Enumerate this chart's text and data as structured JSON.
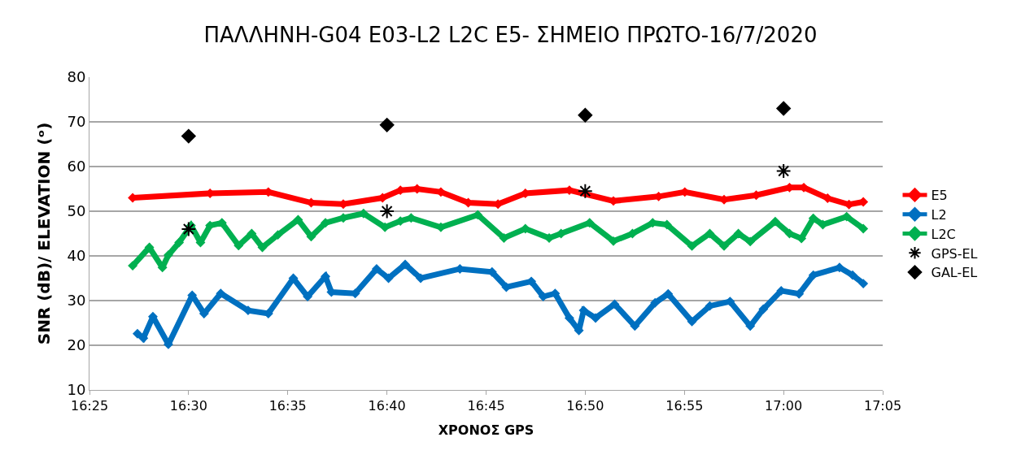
{
  "chart_data": {
    "type": "line",
    "title": "ΠΑΛΛΗΝΗ-G04 E03-L2 L2C E5- ΣΗΜΕΙΟ ΠΡΩΤΟ-16/7/2020",
    "xlabel": "ΧΡΟΝΟΣ GPS",
    "ylabel": "SNR (dB)/ ELEVATION (ᵒ)",
    "xlim": [
      16.4167,
      17.0833
    ],
    "xticks": [
      {
        "value": 16.4167,
        "label": "16:25"
      },
      {
        "value": 16.5,
        "label": "16:30"
      },
      {
        "value": 16.5833,
        "label": "16:35"
      },
      {
        "value": 16.6667,
        "label": "16:40"
      },
      {
        "value": 16.75,
        "label": "16:45"
      },
      {
        "value": 16.8333,
        "label": "16:50"
      },
      {
        "value": 16.9167,
        "label": "16:55"
      },
      {
        "value": 17.0,
        "label": "17:00"
      },
      {
        "value": 17.0833,
        "label": "17:05"
      }
    ],
    "ylim": [
      10,
      80
    ],
    "yticks": [
      10,
      20,
      30,
      40,
      50,
      60,
      70,
      80
    ],
    "grid": "y",
    "legend": "right",
    "series": [
      {
        "name": "E5",
        "color": "#ff0000",
        "marker": "diamond",
        "x": [
          16.453,
          16.518,
          16.567,
          16.603,
          16.63,
          16.663,
          16.678,
          16.692,
          16.712,
          16.735,
          16.76,
          16.783,
          16.82,
          16.857,
          16.895,
          16.917,
          16.95,
          16.977,
          17.005,
          17.017,
          17.037,
          17.055,
          17.067
        ],
        "values": [
          53,
          54,
          54.3,
          51.9,
          51.6,
          53,
          54.7,
          55,
          54.3,
          51.9,
          51.6,
          54,
          54.7,
          52.3,
          53.3,
          54.3,
          52.6,
          53.6,
          55.3,
          55.3,
          52.9,
          51.5,
          52.1
        ]
      },
      {
        "name": "L2",
        "color": "#0070c0",
        "marker": "diamond",
        "x": [
          16.457,
          16.462,
          16.47,
          16.483,
          16.503,
          16.513,
          16.527,
          16.55,
          16.567,
          16.588,
          16.6,
          16.615,
          16.62,
          16.64,
          16.658,
          16.668,
          16.682,
          16.695,
          16.728,
          16.755,
          16.767,
          16.788,
          16.798,
          16.808,
          16.82,
          16.828,
          16.832,
          16.842,
          16.858,
          16.875,
          16.892,
          16.903,
          16.923,
          16.938,
          16.955,
          16.972,
          16.983,
          16.998,
          17.013,
          17.025,
          17.047,
          17.058,
          17.067
        ],
        "values": [
          22.6,
          21.6,
          26.4,
          20.2,
          31.2,
          27.1,
          31.6,
          27.8,
          27.1,
          35,
          30.9,
          35.4,
          31.9,
          31.6,
          37.1,
          35,
          38.1,
          35,
          37.1,
          36.4,
          33,
          34.3,
          30.9,
          31.6,
          26.1,
          23.3,
          27.8,
          26.1,
          29.2,
          24.3,
          29.5,
          31.5,
          25.3,
          28.8,
          29.8,
          24.3,
          28.1,
          32.2,
          31.5,
          35.7,
          37.4,
          35.7,
          33.8
        ]
      },
      {
        "name": "L2C",
        "color": "#00b050",
        "marker": "diamond",
        "x": [
          16.453,
          16.467,
          16.478,
          16.483,
          16.492,
          16.502,
          16.51,
          16.518,
          16.528,
          16.542,
          16.553,
          16.562,
          16.575,
          16.592,
          16.603,
          16.615,
          16.63,
          16.647,
          16.665,
          16.678,
          16.687,
          16.712,
          16.743,
          16.765,
          16.783,
          16.803,
          16.813,
          16.837,
          16.857,
          16.873,
          16.89,
          16.902,
          16.923,
          16.938,
          16.95,
          16.962,
          16.972,
          16.993,
          17.005,
          17.015,
          17.025,
          17.033,
          17.053,
          17.067
        ],
        "values": [
          37.8,
          41.9,
          37.4,
          40.2,
          43,
          46.8,
          43,
          46.8,
          47.4,
          42.3,
          45,
          41.9,
          44.7,
          48.1,
          44.3,
          47.4,
          48.5,
          49.5,
          46.4,
          47.8,
          48.5,
          46.4,
          49.2,
          44,
          46.1,
          44,
          45,
          47.4,
          43.3,
          45,
          47.4,
          47,
          42.2,
          45,
          42.2,
          45,
          43.2,
          47.7,
          45,
          43.9,
          48.4,
          47,
          48.8,
          46.1
        ]
      },
      {
        "name": "GPS-EL",
        "color": "#000000",
        "marker": "cross",
        "type": "scatter",
        "x": [
          16.5,
          16.6667,
          16.8333,
          17.0
        ],
        "values": [
          46,
          50,
          54.5,
          59
        ]
      },
      {
        "name": "GAL-EL",
        "color": "#000000",
        "marker": "diamond",
        "type": "scatter",
        "x": [
          16.5,
          16.6667,
          16.8333,
          17.0
        ],
        "values": [
          66.8,
          69.3,
          71.5,
          73
        ]
      }
    ]
  }
}
